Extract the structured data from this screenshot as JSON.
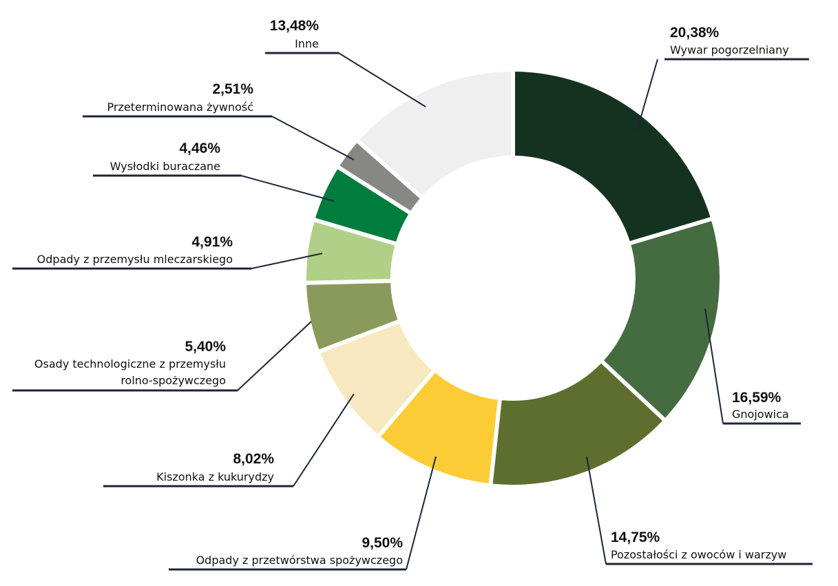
{
  "chart_data": {
    "type": "pie",
    "donut": true,
    "unit": "%",
    "slices": [
      {
        "label": "Wywar pogorzelniany",
        "value": 20.38,
        "value_label": "20,38%",
        "color": "#143220"
      },
      {
        "label": "Gnojowica",
        "value": 16.59,
        "value_label": "16,59%",
        "color": "#456b41"
      },
      {
        "label": "Pozostałości z owoców i warzyw",
        "value": 14.75,
        "value_label": "14,75%",
        "color": "#5d6e2f"
      },
      {
        "label": "Odpady z przetwórstwa spożywczego",
        "value": 9.5,
        "value_label": "9,50%",
        "color": "#fccc36"
      },
      {
        "label": "Kiszonka z kukurydzy",
        "value": 8.02,
        "value_label": "8,02%",
        "color": "#f8e8bf"
      },
      {
        "label": "Osady technologiczne z przemysłu rolno-spożywczego",
        "label_lines": [
          "Osady technologiczne z przemysłu",
          "rolno-spożywczego"
        ],
        "value": 5.4,
        "value_label": "5,40%",
        "color": "#8a9a5a"
      },
      {
        "label": "Odpady z przemysłu mleczarskiego",
        "value": 4.91,
        "value_label": "4,91%",
        "color": "#b0d087"
      },
      {
        "label": "Wysłodki buraczane",
        "value": 4.46,
        "value_label": "4,46%",
        "color": "#007c3c"
      },
      {
        "label": "Przeterminowana żywność",
        "value": 2.51,
        "value_label": "2,51%",
        "color": "#878784"
      },
      {
        "label": "Inne",
        "value": 13.48,
        "value_label": "13,48%",
        "color": "#efefef"
      }
    ]
  }
}
